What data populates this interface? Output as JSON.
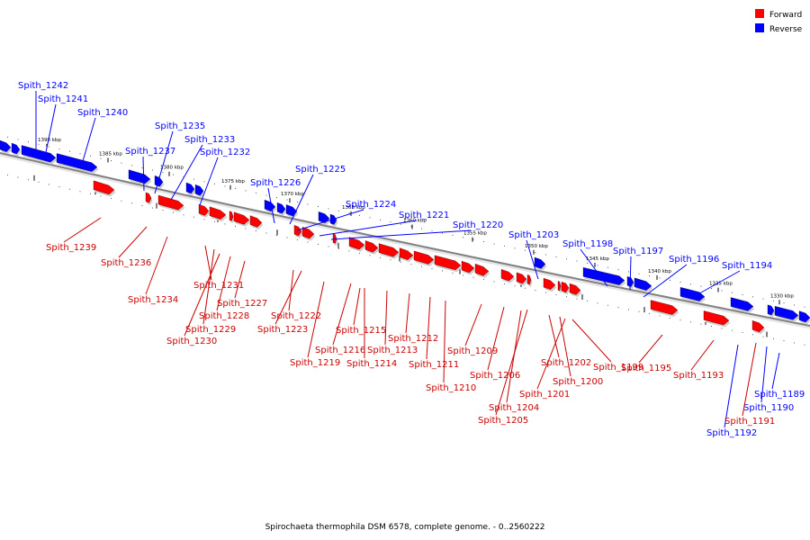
{
  "caption": "Spirochaeta thermophila DSM 6578, complete genome. - 0..2560222",
  "legend": [
    {
      "label": "Forward",
      "color": "#ff0000"
    },
    {
      "label": "Reverse",
      "color": "#0000ff"
    }
  ],
  "colors": {
    "forward": "#ff0000",
    "reverse": "#0000ff",
    "backbone": "#808080"
  },
  "kbp_labels": [
    "1390 kbp",
    "1385 kbp",
    "1380 kbp",
    "1375 kbp",
    "1370 kbp",
    "1365 kbp",
    "1360 kbp",
    "1355 kbp",
    "1350 kbp",
    "1345 kbp",
    "1340 kbp",
    "1335 kbp",
    "1330 kbp"
  ],
  "reverse_genes": [
    "Spith_1242",
    "Spith_1241",
    "Spith_1240",
    "Spith_1237",
    "Spith_1235",
    "Spith_1233",
    "Spith_1232",
    "Spith_1226",
    "Spith_1225",
    "Spith_1224",
    "Spith_1221",
    "Spith_1220",
    "Spith_1203",
    "Spith_1198",
    "Spith_1197",
    "Spith_1196",
    "Spith_1194",
    "Spith_1189",
    "Spith_1190",
    "Spith_1192"
  ],
  "forward_genes": [
    "Spith_1239",
    "Spith_1236",
    "Spith_1234",
    "Spith_1231",
    "Spith_1229",
    "Spith_1230",
    "Spith_1228",
    "Spith_1227",
    "Spith_1222",
    "Spith_1223",
    "Spith_1219",
    "Spith_1216",
    "Spith_1214",
    "Spith_1215",
    "Spith_1213",
    "Spith_1212",
    "Spith_1211",
    "Spith_1210",
    "Spith_1209",
    "Spith_1206",
    "Spith_1204",
    "Spith_1205",
    "Spith_1202",
    "Spith_1200",
    "Spith_1201",
    "Spith_1199",
    "Spith_1195",
    "Spith_1193",
    "Spith_1191"
  ]
}
